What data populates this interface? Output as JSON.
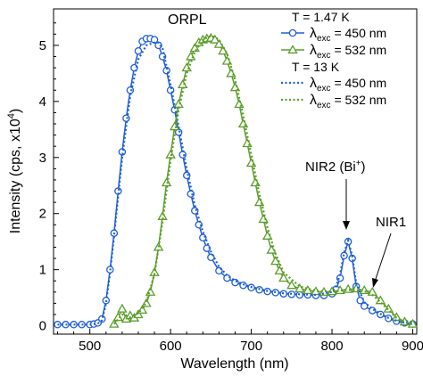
{
  "chart_data": {
    "type": "line",
    "title": "ORPL",
    "xlabel": "Wavelength (nm)",
    "ylabel": "Intensity (cps, x10",
    "ylabel_exp": "4",
    "ylabel_close": ")",
    "xlim": [
      455,
      905
    ],
    "ylim": [
      -0.15,
      5.65
    ],
    "xticks": [
      500,
      600,
      700,
      800,
      900
    ],
    "yticks": [
      0,
      1,
      2,
      3,
      4,
      5
    ],
    "grid": false,
    "legend_position": "top-right",
    "legend_groups": [
      {
        "title": "T = 1.47 K",
        "entries": [
          {
            "series": 0,
            "label_lambda": "λ",
            "label_sub": "exc",
            "label_rest": " = 450 nm"
          },
          {
            "series": 1,
            "label_lambda": "λ",
            "label_sub": "exc",
            "label_rest": " = 532 nm"
          }
        ]
      },
      {
        "title": "T = 13 K",
        "entries": [
          {
            "series": 2,
            "label_lambda": "λ",
            "label_sub": "exc",
            "label_rest": " = 450 nm"
          },
          {
            "series": 3,
            "label_lambda": "λ",
            "label_sub": "exc",
            "label_rest": " = 532 nm"
          }
        ]
      }
    ],
    "annotations": [
      {
        "text": "NIR2 (Bi",
        "sup": "+",
        "close": ")",
        "x": 820,
        "y": 1.5
      },
      {
        "text": "NIR1",
        "sup": "",
        "close": "",
        "x": 858,
        "y": 0.6
      }
    ],
    "series": [
      {
        "color": "#1f5fd6",
        "style": "solid",
        "marker": "circle",
        "x": [
          460,
          470,
          480,
          490,
          500,
          505,
          510,
          515,
          520,
          525,
          530,
          535,
          540,
          545,
          550,
          555,
          560,
          565,
          570,
          575,
          580,
          585,
          590,
          595,
          600,
          605,
          610,
          615,
          620,
          625,
          630,
          635,
          640,
          645,
          650,
          660,
          670,
          680,
          690,
          700,
          710,
          720,
          730,
          740,
          750,
          760,
          770,
          780,
          790,
          800,
          805,
          810,
          815,
          820,
          825,
          830,
          835,
          840,
          850,
          860,
          870,
          880,
          890,
          900
        ],
        "y": [
          0.02,
          0.02,
          0.02,
          0.02,
          0.02,
          0.03,
          0.05,
          0.12,
          0.45,
          1.0,
          1.65,
          2.4,
          3.1,
          3.7,
          4.2,
          4.6,
          4.9,
          5.07,
          5.12,
          5.12,
          5.1,
          5.0,
          4.8,
          4.55,
          4.2,
          3.85,
          3.45,
          3.05,
          2.68,
          2.35,
          2.05,
          1.8,
          1.57,
          1.38,
          1.22,
          0.98,
          0.85,
          0.77,
          0.72,
          0.68,
          0.64,
          0.61,
          0.59,
          0.57,
          0.56,
          0.55,
          0.55,
          0.54,
          0.54,
          0.57,
          0.65,
          0.85,
          1.25,
          1.5,
          1.2,
          0.7,
          0.45,
          0.35,
          0.27,
          0.2,
          0.13,
          0.08,
          0.05,
          0.03
        ]
      },
      {
        "color": "#5a9e28",
        "style": "solid",
        "marker": "triangle",
        "x": [
          530,
          535,
          540,
          545,
          550,
          555,
          560,
          565,
          570,
          575,
          580,
          585,
          590,
          595,
          600,
          605,
          610,
          615,
          620,
          625,
          630,
          635,
          640,
          645,
          650,
          655,
          660,
          665,
          670,
          675,
          680,
          685,
          690,
          695,
          700,
          705,
          710,
          715,
          720,
          725,
          730,
          735,
          740,
          750,
          760,
          770,
          780,
          790,
          800,
          810,
          820,
          830,
          840,
          850,
          860,
          870,
          880,
          890,
          900
        ],
        "y": [
          0.03,
          0.15,
          0.3,
          0.12,
          0.18,
          0.14,
          0.2,
          0.28,
          0.4,
          0.6,
          0.95,
          1.4,
          1.95,
          2.55,
          3.05,
          3.55,
          3.95,
          4.3,
          4.6,
          4.8,
          4.95,
          5.05,
          5.1,
          5.12,
          5.13,
          5.1,
          5.02,
          4.9,
          4.72,
          4.5,
          4.25,
          3.95,
          3.6,
          3.25,
          2.9,
          2.55,
          2.2,
          1.9,
          1.6,
          1.35,
          1.15,
          0.98,
          0.85,
          0.72,
          0.66,
          0.63,
          0.61,
          0.6,
          0.61,
          0.63,
          0.65,
          0.66,
          0.63,
          0.6,
          0.45,
          0.3,
          0.15,
          0.07,
          0.03
        ]
      },
      {
        "color": "#1f5fd6",
        "style": "dotted",
        "marker": "none",
        "x": [
          460,
          480,
          500,
          510,
          515,
          520,
          525,
          530,
          540,
          550,
          560,
          570,
          580,
          585,
          590,
          600,
          610,
          620,
          630,
          640,
          650,
          660,
          670,
          680,
          690,
          700,
          720,
          740,
          760,
          780,
          800,
          805,
          810,
          815,
          820,
          825,
          830,
          840,
          850,
          860,
          870,
          880,
          890,
          900
        ],
        "y": [
          0.02,
          0.02,
          0.02,
          0.04,
          0.1,
          0.4,
          0.95,
          1.6,
          3.0,
          4.1,
          4.75,
          5.0,
          5.05,
          5.05,
          4.95,
          4.3,
          3.55,
          2.8,
          2.15,
          1.68,
          1.32,
          1.05,
          0.9,
          0.8,
          0.74,
          0.69,
          0.62,
          0.58,
          0.56,
          0.55,
          0.6,
          0.7,
          0.92,
          1.3,
          1.52,
          1.25,
          0.75,
          0.42,
          0.3,
          0.21,
          0.14,
          0.09,
          0.05,
          0.03
        ]
      },
      {
        "color": "#5a9e28",
        "style": "dotted",
        "marker": "none",
        "x": [
          530,
          540,
          550,
          560,
          570,
          580,
          590,
          600,
          610,
          620,
          630,
          640,
          650,
          655,
          660,
          670,
          680,
          690,
          700,
          710,
          720,
          730,
          740,
          760,
          780,
          800,
          820,
          840,
          850,
          860,
          870,
          880,
          890,
          900
        ],
        "y": [
          0.03,
          0.2,
          0.15,
          0.22,
          0.42,
          0.92,
          1.85,
          2.95,
          3.85,
          4.5,
          4.88,
          5.1,
          5.17,
          5.15,
          5.1,
          4.85,
          4.38,
          3.75,
          3.05,
          2.35,
          1.75,
          1.28,
          0.95,
          0.7,
          0.62,
          0.61,
          0.64,
          0.62,
          0.55,
          0.42,
          0.28,
          0.14,
          0.07,
          0.03
        ]
      }
    ]
  }
}
